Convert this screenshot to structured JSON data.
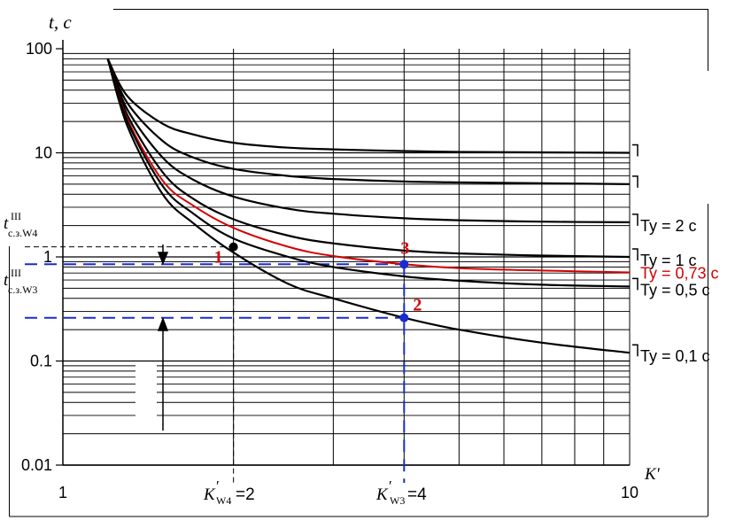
{
  "chart_data": {
    "type": "line",
    "x_scale": "log",
    "y_scale": "log",
    "xlim": [
      1,
      10
    ],
    "ylim": [
      0.01,
      100
    ],
    "grid": true,
    "xlabel": "K'",
    "ylabel": "t, c",
    "x_ticks": [
      {
        "value": 1,
        "label": "1"
      },
      {
        "value": 10,
        "label": "10"
      }
    ],
    "y_ticks": [
      {
        "value": 100,
        "label": "100"
      },
      {
        "value": 10,
        "label": "10"
      },
      {
        "value": 1,
        "label": "1"
      },
      {
        "value": 0.1,
        "label": "0.1"
      },
      {
        "value": 0.01,
        "label": "0.01"
      }
    ],
    "series": [
      {
        "name": "",
        "color": "#000000",
        "x": [
          1.2,
          1.3,
          1.5,
          1.7,
          2,
          2.5,
          3,
          4,
          5,
          7,
          10
        ],
        "y": [
          80,
          35,
          19,
          15,
          12.5,
          11.2,
          10.8,
          10.4,
          10.2,
          10.1,
          10
        ]
      },
      {
        "name": "",
        "color": "#000000",
        "x": [
          1.2,
          1.3,
          1.5,
          1.7,
          2,
          2.5,
          3,
          4,
          5,
          7,
          10
        ],
        "y": [
          80,
          30,
          13,
          9,
          7,
          6,
          5.6,
          5.3,
          5.2,
          5.1,
          5
        ]
      },
      {
        "name": "Ty = 2 c",
        "color": "#000000",
        "x": [
          1.2,
          1.3,
          1.5,
          1.7,
          2,
          2.5,
          3,
          4,
          5,
          7,
          10
        ],
        "y": [
          80,
          26,
          9,
          5.5,
          3.8,
          2.9,
          2.6,
          2.35,
          2.25,
          2.18,
          2.15
        ]
      },
      {
        "name": "Ty = 1 c",
        "color": "#000000",
        "x": [
          1.2,
          1.3,
          1.5,
          1.7,
          2,
          2.5,
          3,
          4,
          5,
          7,
          10
        ],
        "y": [
          80,
          23,
          6.5,
          3.6,
          2.3,
          1.6,
          1.35,
          1.15,
          1.08,
          1.03,
          1.0
        ]
      },
      {
        "name": "Ty = 0,73 c",
        "color": "#d40000",
        "x": [
          1.2,
          1.3,
          1.5,
          1.7,
          2,
          2.5,
          3,
          4,
          5,
          7,
          10
        ],
        "y": [
          80,
          21,
          5.4,
          3.1,
          1.9,
          1.25,
          1.02,
          0.85,
          0.78,
          0.74,
          0.71
        ]
      },
      {
        "name": "Ty = 0,5 c",
        "color": "#000000",
        "x": [
          1.2,
          1.3,
          1.5,
          1.7,
          2,
          2.5,
          3,
          4,
          5,
          7,
          10
        ],
        "y": [
          80,
          20,
          4.8,
          2.6,
          1.5,
          1.0,
          0.8,
          0.65,
          0.59,
          0.54,
          0.52
        ]
      },
      {
        "name": "Ty = 0,1 c",
        "color": "#000000",
        "x": [
          1.2,
          1.3,
          1.5,
          1.7,
          2,
          2.5,
          3,
          4,
          5,
          7,
          10
        ],
        "y": [
          80,
          18,
          4.0,
          2.1,
          1.1,
          0.55,
          0.4,
          0.26,
          0.2,
          0.15,
          0.12
        ]
      }
    ],
    "points": [
      {
        "label": "1",
        "x": 2,
        "y": 1.25,
        "color": "#000000",
        "label_color": "#d40000"
      },
      {
        "label": "2",
        "x": 4,
        "y": 0.26,
        "color": "#1a2bd0",
        "label_color": "#d40000"
      },
      {
        "label": "3",
        "x": 4,
        "y": 0.85,
        "color": "#1a2bd0",
        "label_color": "#d40000"
      }
    ],
    "reference_lines": [
      {
        "kind": "h",
        "y": 1.25,
        "style": "dashed",
        "color": "#000000"
      },
      {
        "kind": "v",
        "x": 2,
        "style": "dashed",
        "color": "#000000"
      },
      {
        "kind": "h",
        "y": 0.85,
        "style": "dashed",
        "color": "#1a2bd0"
      },
      {
        "kind": "h",
        "y": 0.26,
        "style": "dashed",
        "color": "#1a2bd0"
      },
      {
        "kind": "v",
        "x": 4,
        "style": "dashed",
        "color": "#1a2bd0"
      }
    ],
    "annotations": {
      "t_w4_main": "t",
      "t_w4_sup": "III",
      "t_w4_sub": "с.з.W4",
      "t_w3_main": "t",
      "t_w3_sup": "III",
      "t_w3_sub": "с.з.W3",
      "k_w4_main": "K",
      "k_w4_prime": "′",
      "k_w4_sub": "W4",
      "k_w4_value": " =2",
      "k_w3_main": "K",
      "k_w3_prime": "′",
      "k_w3_sub": "W3",
      "k_w3_value": " =4"
    }
  }
}
